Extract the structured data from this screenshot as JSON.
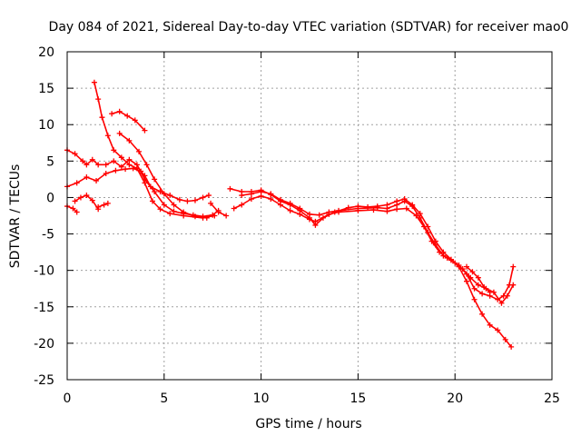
{
  "chart_data": {
    "type": "scatter",
    "title": "Day 084 of 2021, Sidereal Day-to-day VTEC variation (SDTVAR) for receiver mao0",
    "xlabel": "GPS time / hours",
    "ylabel": "SDTVAR / TECUs",
    "xlim": [
      0,
      25
    ],
    "ylim": [
      -25,
      20
    ],
    "xticks": [
      0,
      5,
      10,
      15,
      20,
      25
    ],
    "yticks": [
      -25,
      -20,
      -15,
      -10,
      -5,
      0,
      5,
      10,
      15,
      20
    ],
    "grid": true,
    "marker": "plus",
    "color": "#ff0000",
    "series": [
      {
        "name": "s1",
        "points": [
          [
            0,
            -1.2
          ],
          [
            0.3,
            -1.5
          ],
          [
            0.5,
            -2.0
          ]
        ]
      },
      {
        "name": "s2",
        "points": [
          [
            0.4,
            -0.5
          ],
          [
            0.7,
            0
          ],
          [
            1.0,
            0.3
          ],
          [
            1.3,
            -0.4
          ],
          [
            1.6,
            -1.6
          ]
        ]
      },
      {
        "name": "s3",
        "points": [
          [
            1.6,
            -1.3
          ],
          [
            1.9,
            -1.0
          ],
          [
            2.1,
            -0.8
          ]
        ]
      },
      {
        "name": "s4",
        "points": [
          [
            0,
            1.5
          ],
          [
            0.5,
            2.0
          ],
          [
            1.0,
            2.8
          ],
          [
            1.5,
            2.3
          ],
          [
            2.0,
            3.3
          ],
          [
            2.5,
            3.7
          ],
          [
            3.0,
            3.9
          ],
          [
            3.4,
            4.0
          ],
          [
            3.8,
            3.6
          ],
          [
            4.0,
            3.0
          ],
          [
            4.3,
            1.5
          ],
          [
            4.8,
            0.8
          ],
          [
            5.3,
            0.3
          ],
          [
            5.8,
            -0.3
          ],
          [
            6.2,
            -0.5
          ],
          [
            6.6,
            -0.4
          ],
          [
            7.0,
            0.0
          ],
          [
            7.3,
            0.3
          ]
        ]
      },
      {
        "name": "s5",
        "points": [
          [
            0,
            6.5
          ],
          [
            0.4,
            6.0
          ],
          [
            0.8,
            5.0
          ],
          [
            1.0,
            4.5
          ],
          [
            1.3,
            5.2
          ],
          [
            1.6,
            4.5
          ],
          [
            2.0,
            4.5
          ],
          [
            2.4,
            5.0
          ],
          [
            2.8,
            4.2
          ],
          [
            3.2,
            5.2
          ],
          [
            3.6,
            4.5
          ],
          [
            4.0,
            2.5
          ],
          [
            4.5,
            0.8
          ],
          [
            5.0,
            -1.0
          ],
          [
            5.5,
            -1.9
          ],
          [
            6.0,
            -2.2
          ],
          [
            6.5,
            -2.4
          ],
          [
            7.0,
            -2.6
          ],
          [
            7.5,
            -2.4
          ],
          [
            7.8,
            -1.8
          ]
        ]
      },
      {
        "name": "s6",
        "points": [
          [
            1.4,
            15.8
          ],
          [
            1.6,
            13.5
          ],
          [
            1.8,
            11.0
          ],
          [
            2.1,
            8.5
          ],
          [
            2.4,
            6.5
          ],
          [
            2.8,
            5.5
          ],
          [
            3.2,
            4.5
          ],
          [
            3.6,
            4.0
          ],
          [
            4.0,
            2.0
          ],
          [
            4.4,
            -0.5
          ],
          [
            4.8,
            -1.6
          ],
          [
            5.3,
            -2.2
          ],
          [
            6.0,
            -2.5
          ],
          [
            7.0,
            -2.8
          ],
          [
            7.6,
            -2.5
          ]
        ]
      },
      {
        "name": "s7",
        "points": [
          [
            2.3,
            11.5
          ],
          [
            2.7,
            11.8
          ],
          [
            3.1,
            11.2
          ],
          [
            3.5,
            10.6
          ],
          [
            4.0,
            9.2
          ]
        ]
      },
      {
        "name": "s8",
        "points": [
          [
            2.7,
            8.8
          ],
          [
            3.2,
            7.8
          ],
          [
            3.7,
            6.3
          ],
          [
            4.1,
            4.5
          ],
          [
            4.5,
            2.5
          ],
          [
            5.0,
            0.5
          ],
          [
            5.5,
            -1.0
          ],
          [
            6.0,
            -2.0
          ],
          [
            6.6,
            -2.6
          ],
          [
            7.2,
            -2.8
          ]
        ]
      },
      {
        "name": "s9",
        "points": [
          [
            7.4,
            -0.8
          ],
          [
            7.8,
            -2.0
          ],
          [
            8.2,
            -2.5
          ]
        ]
      },
      {
        "name": "s10",
        "points": [
          [
            8.4,
            1.2
          ],
          [
            9.0,
            0.8
          ],
          [
            9.5,
            0.8
          ],
          [
            10.0,
            1.0
          ],
          [
            10.5,
            0.4
          ],
          [
            11.0,
            -0.5
          ],
          [
            11.5,
            -1.0
          ],
          [
            12.0,
            -1.8
          ],
          [
            12.5,
            -2.8
          ],
          [
            12.8,
            -3.8
          ],
          [
            13.2,
            -2.8
          ],
          [
            13.8,
            -2.0
          ],
          [
            14.5,
            -1.4
          ],
          [
            15.0,
            -1.2
          ],
          [
            15.5,
            -1.3
          ],
          [
            16.0,
            -1.2
          ],
          [
            16.5,
            -1.0
          ],
          [
            17.0,
            -0.5
          ],
          [
            17.4,
            -0.2
          ],
          [
            17.8,
            -1.0
          ],
          [
            18.2,
            -2.2
          ],
          [
            18.6,
            -4.0
          ],
          [
            19.0,
            -6.0
          ],
          [
            19.4,
            -7.5
          ],
          [
            19.8,
            -8.5
          ],
          [
            20.2,
            -9.5
          ],
          [
            20.6,
            -11.5
          ],
          [
            21.0,
            -14.0
          ],
          [
            21.4,
            -16.0
          ],
          [
            21.8,
            -17.5
          ],
          [
            22.2,
            -18.2
          ],
          [
            22.6,
            -19.5
          ],
          [
            22.9,
            -20.5
          ]
        ]
      },
      {
        "name": "s11",
        "points": [
          [
            8.6,
            -1.5
          ],
          [
            9.0,
            -1.0
          ],
          [
            9.5,
            -0.2
          ],
          [
            10.0,
            0.2
          ],
          [
            10.5,
            -0.2
          ],
          [
            11.0,
            -1.0
          ],
          [
            11.5,
            -1.8
          ],
          [
            12.0,
            -2.3
          ],
          [
            12.5,
            -3.0
          ],
          [
            12.8,
            -3.3
          ],
          [
            13.5,
            -2.3
          ],
          [
            14.0,
            -2.0
          ],
          [
            15.0,
            -1.8
          ],
          [
            15.8,
            -1.7
          ],
          [
            16.5,
            -1.9
          ],
          [
            17.0,
            -1.6
          ],
          [
            17.5,
            -1.5
          ],
          [
            18.0,
            -2.5
          ],
          [
            18.4,
            -4.0
          ],
          [
            18.8,
            -6.0
          ],
          [
            19.2,
            -7.5
          ],
          [
            19.6,
            -8.3
          ],
          [
            20.0,
            -9.0
          ],
          [
            20.4,
            -9.8
          ],
          [
            20.8,
            -11.0
          ],
          [
            21.2,
            -12.0
          ],
          [
            21.6,
            -12.5
          ],
          [
            22.0,
            -13.0
          ],
          [
            22.4,
            -14.5
          ],
          [
            22.7,
            -13.5
          ],
          [
            23.0,
            -12.0
          ]
        ]
      },
      {
        "name": "s12",
        "points": [
          [
            9.0,
            0.3
          ],
          [
            9.5,
            0.5
          ],
          [
            10.0,
            0.8
          ],
          [
            10.5,
            0.5
          ],
          [
            11.0,
            -0.3
          ],
          [
            11.5,
            -0.8
          ],
          [
            12.0,
            -1.5
          ],
          [
            12.5,
            -2.3
          ],
          [
            13.0,
            -2.4
          ],
          [
            13.5,
            -2.0
          ],
          [
            14.0,
            -1.8
          ],
          [
            15.0,
            -1.5
          ],
          [
            16.0,
            -1.4
          ],
          [
            16.5,
            -1.5
          ],
          [
            17.0,
            -1.0
          ],
          [
            17.4,
            -0.5
          ],
          [
            17.8,
            -1.2
          ],
          [
            18.2,
            -2.8
          ],
          [
            18.6,
            -4.8
          ],
          [
            19.0,
            -6.5
          ],
          [
            19.4,
            -8.0
          ],
          [
            19.8,
            -8.6
          ],
          [
            20.2,
            -9.3
          ],
          [
            20.6,
            -10.5
          ],
          [
            21.0,
            -12.5
          ],
          [
            21.4,
            -13.2
          ],
          [
            21.8,
            -13.5
          ],
          [
            22.2,
            -14.0
          ],
          [
            22.5,
            -13.5
          ],
          [
            22.8,
            -12.0
          ],
          [
            23.0,
            -9.5
          ]
        ]
      },
      {
        "name": "s13",
        "points": [
          [
            20.6,
            -9.5
          ],
          [
            20.9,
            -10.2
          ],
          [
            21.2,
            -11.0
          ],
          [
            21.5,
            -12.3
          ],
          [
            21.8,
            -13.0
          ]
        ]
      }
    ]
  }
}
